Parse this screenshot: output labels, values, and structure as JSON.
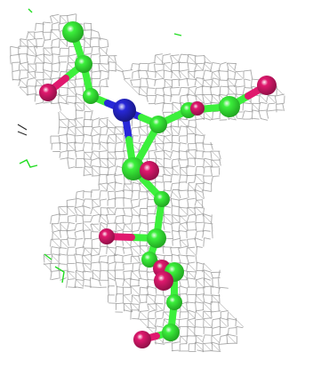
{
  "scene": {
    "subject": "molecular-model-in-electron-density-mesh",
    "colors": {
      "background": "#ffffff",
      "mesh": "#9a9a9a",
      "carbon": "#3cf03c",
      "carbon_shade": "#1fa01f",
      "oxygen": "#e0196e",
      "oxygen_shade": "#8a0f44",
      "nitrogen": "#2828d8",
      "nitrogen_shade": "#15157a",
      "difference_map": "#22dd22",
      "dark_fragment": "#2a2a2a"
    }
  }
}
